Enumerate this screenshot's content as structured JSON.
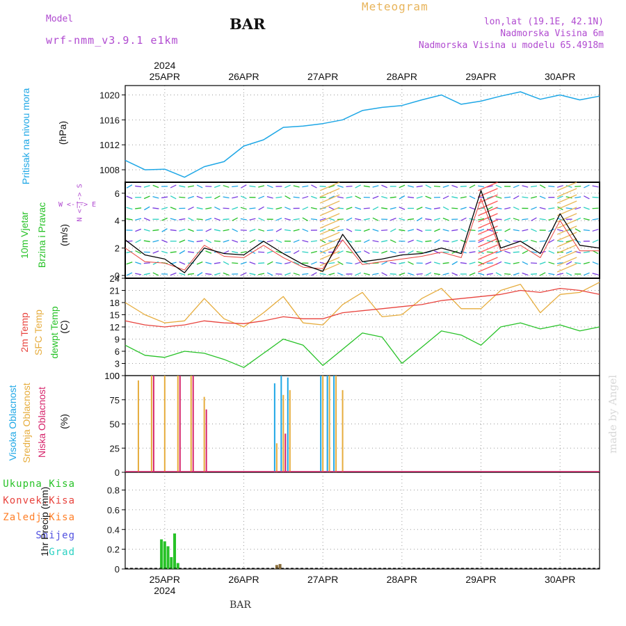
{
  "header": {
    "model_label": "Model",
    "model_value": "wrf-nmm_v3.9.1 e1km",
    "station": "BAR",
    "title": "Meteogram",
    "coords": "lon,lat (19.1E, 42.1N)",
    "elevation": "Nadmorska Visina 6m",
    "model_elevation": "Nadmorska Visina u modelu 65.4918m"
  },
  "footer": {
    "station": "BAR",
    "watermark": "made by Angel"
  },
  "time_axis": {
    "year_top": "2024",
    "year_bottom": "2024",
    "dates": [
      "25APR",
      "26APR",
      "27APR",
      "28APR",
      "29APR",
      "30APR"
    ],
    "start": "2024-04-24T12:00",
    "end": "2024-04-30T12:00"
  },
  "colors": {
    "pressure": "#1ea7e6",
    "temp2m": "#e8433d",
    "sfc_temp": "#e6ac3c",
    "dewpt": "#27c227",
    "high_cloud": "#1ea7e6",
    "mid_cloud": "#e6ac3c",
    "low_cloud": "#d6246b",
    "total_rain": "#27c227",
    "conv_rain": "#e8433d",
    "freezing": "#ff7f27",
    "snow": "#5050e0",
    "hail": "#2ad1c2",
    "wind_speed": "#000000",
    "wind_gust": "#e8433d"
  },
  "labels": {
    "pressure": "Pritisak na nivou mora",
    "pressure_unit": "(hPa)",
    "wind_1": "10m Vjetar",
    "wind_2": "Brzina i Pravac",
    "wind_unit": "(m/s)",
    "compass": "W <-|-> E",
    "compass_n": "N <-|-> S",
    "temp_2m": "2m Temp",
    "temp_sfc": "SFC Temp",
    "temp_dew": "dewpt Temp",
    "temp_unit": "(C)",
    "cloud_high": "Visoka Oblacnost",
    "cloud_mid": "Srednja Oblacnost",
    "cloud_low": "Niska Oblacnost",
    "cloud_unit": "(%)",
    "precip_unit": "1hr Precip (mm)",
    "legend": [
      "Ukupna Kisa",
      "Konvek.Kisa",
      "Zaledj.Kisa",
      "Snijeg",
      "Grad"
    ]
  },
  "chart_data": [
    {
      "type": "line",
      "title": "",
      "ylabel": "Pritisak na nivou mora (hPa)",
      "ylim": [
        1006,
        1021.5
      ],
      "yticks": [
        1008,
        1012,
        1016,
        1020
      ],
      "grid": true,
      "x": [
        "2024-04-24T12:00",
        "2024-04-24T18:00",
        "2024-04-25T00:00",
        "2024-04-25T06:00",
        "2024-04-25T12:00",
        "2024-04-25T18:00",
        "2024-04-26T00:00",
        "2024-04-26T06:00",
        "2024-04-26T12:00",
        "2024-04-26T18:00",
        "2024-04-27T00:00",
        "2024-04-27T06:00",
        "2024-04-27T12:00",
        "2024-04-27T18:00",
        "2024-04-28T00:00",
        "2024-04-28T06:00",
        "2024-04-28T12:00",
        "2024-04-28T18:00",
        "2024-04-29T00:00",
        "2024-04-29T06:00",
        "2024-04-29T12:00",
        "2024-04-29T18:00",
        "2024-04-30T00:00",
        "2024-04-30T06:00",
        "2024-04-30T12:00"
      ],
      "series": [
        {
          "name": "Pritisak na nivou mora",
          "values": [
            1009.5,
            1008.0,
            1008.1,
            1006.8,
            1008.5,
            1009.3,
            1011.8,
            1012.8,
            1014.8,
            1015.0,
            1015.4,
            1016.0,
            1017.5,
            1018.0,
            1018.3,
            1019.2,
            1020.0,
            1018.5,
            1019.0,
            1019.8,
            1020.5,
            1019.3,
            1020.0,
            1019.2,
            1019.8
          ]
        }
      ]
    },
    {
      "type": "line",
      "title": "",
      "ylabel": "10m Vjetar Brzina i Pravac (m/s)",
      "ylim": [
        -0.2,
        6.8
      ],
      "yticks": [
        0,
        2,
        4,
        6
      ],
      "grid": true,
      "x": [
        "2024-04-24T12:00",
        "2024-04-24T18:00",
        "2024-04-25T00:00",
        "2024-04-25T06:00",
        "2024-04-25T12:00",
        "2024-04-25T18:00",
        "2024-04-26T00:00",
        "2024-04-26T06:00",
        "2024-04-26T12:00",
        "2024-04-26T18:00",
        "2024-04-27T00:00",
        "2024-04-27T06:00",
        "2024-04-27T12:00",
        "2024-04-27T18:00",
        "2024-04-28T00:00",
        "2024-04-28T06:00",
        "2024-04-28T12:00",
        "2024-04-28T18:00",
        "2024-04-29T00:00",
        "2024-04-29T06:00",
        "2024-04-29T12:00",
        "2024-04-29T18:00",
        "2024-04-30T00:00",
        "2024-04-30T06:00",
        "2024-04-30T12:00"
      ],
      "series": [
        {
          "name": "speed",
          "values": [
            2.6,
            1.5,
            1.2,
            0.2,
            2.0,
            1.6,
            1.5,
            2.5,
            1.6,
            0.8,
            0.3,
            3.0,
            1.0,
            1.2,
            1.5,
            1.6,
            2.0,
            1.6,
            6.2,
            2.0,
            2.5,
            1.6,
            4.5,
            2.2,
            2.0
          ]
        },
        {
          "name": "gust",
          "values": [
            2.0,
            1.0,
            0.9,
            0.4,
            2.2,
            1.4,
            1.3,
            2.2,
            1.3,
            0.6,
            0.5,
            2.6,
            0.8,
            1.0,
            1.2,
            1.4,
            1.7,
            1.3,
            5.6,
            1.8,
            2.2,
            1.3,
            4.0,
            1.8,
            1.8
          ]
        }
      ]
    },
    {
      "type": "line",
      "title": "",
      "ylabel": "Temp (C)",
      "ylim": [
        0,
        24
      ],
      "yticks": [
        0,
        3,
        6,
        9,
        12,
        15,
        18,
        21,
        24
      ],
      "grid": true,
      "x": [
        "2024-04-24T12:00",
        "2024-04-24T18:00",
        "2024-04-25T00:00",
        "2024-04-25T06:00",
        "2024-04-25T12:00",
        "2024-04-25T18:00",
        "2024-04-26T00:00",
        "2024-04-26T06:00",
        "2024-04-26T12:00",
        "2024-04-26T18:00",
        "2024-04-27T00:00",
        "2024-04-27T06:00",
        "2024-04-27T12:00",
        "2024-04-27T18:00",
        "2024-04-28T00:00",
        "2024-04-28T06:00",
        "2024-04-28T12:00",
        "2024-04-28T18:00",
        "2024-04-29T00:00",
        "2024-04-29T06:00",
        "2024-04-29T12:00",
        "2024-04-29T18:00",
        "2024-04-30T00:00",
        "2024-04-30T06:00",
        "2024-04-30T12:00"
      ],
      "series": [
        {
          "name": "2m Temp",
          "values": [
            13.5,
            12.5,
            12.0,
            12.5,
            13.5,
            13.0,
            12.8,
            13.5,
            14.5,
            14.0,
            14.0,
            15.5,
            16.0,
            16.5,
            17.0,
            17.5,
            18.5,
            19.0,
            19.5,
            20.0,
            21.0,
            20.5,
            21.5,
            21.0,
            20.0
          ]
        },
        {
          "name": "SFC Temp",
          "values": [
            18.0,
            15.0,
            13.0,
            13.5,
            19.0,
            14.0,
            12.0,
            15.5,
            19.5,
            13.0,
            12.5,
            17.5,
            20.5,
            14.5,
            15.0,
            19.0,
            21.5,
            16.5,
            16.5,
            21.0,
            22.5,
            15.5,
            20.0,
            20.5,
            23.0
          ]
        },
        {
          "name": "dewpt Temp",
          "values": [
            7.5,
            5.0,
            4.5,
            6.0,
            5.5,
            4.0,
            2.0,
            5.5,
            9.0,
            7.5,
            2.5,
            6.5,
            10.5,
            9.5,
            3.0,
            7.0,
            11.0,
            10.0,
            7.5,
            12.0,
            13.0,
            11.5,
            12.5,
            11.0,
            12.0
          ]
        }
      ]
    },
    {
      "type": "bar",
      "title": "",
      "ylabel": "Oblacnost (%)",
      "ylim": [
        0,
        100
      ],
      "yticks": [
        0,
        25,
        50,
        75,
        100
      ],
      "grid": true,
      "x": [
        "2024-04-24T16:00",
        "2024-04-24T20:00",
        "2024-04-25T00:00",
        "2024-04-25T04:00",
        "2024-04-25T08:00",
        "2024-04-25T12:00",
        "2024-04-26T10:00",
        "2024-04-26T12:00",
        "2024-04-26T14:00",
        "2024-04-27T00:00",
        "2024-04-27T02:00",
        "2024-04-27T04:00",
        "2024-04-27T06:00"
      ],
      "series": [
        {
          "name": "Visoka Oblacnost",
          "values": [
            0,
            0,
            0,
            0,
            0,
            0,
            92,
            100,
            98,
            100,
            100,
            100,
            0
          ]
        },
        {
          "name": "Srednja Oblacnost",
          "values": [
            95,
            100,
            100,
            100,
            100,
            78,
            30,
            80,
            85,
            100,
            100,
            100,
            85
          ]
        },
        {
          "name": "Niska Oblacnost",
          "values": [
            0,
            100,
            0,
            100,
            100,
            65,
            0,
            40,
            0,
            0,
            0,
            0,
            0
          ]
        }
      ]
    },
    {
      "type": "bar",
      "title": "",
      "ylabel": "1hr Precip (mm)",
      "ylim": [
        0,
        0.98
      ],
      "yticks": [
        0,
        0.2,
        0.4,
        0.6,
        0.8
      ],
      "grid": true,
      "x": [
        "2024-04-24T23:00",
        "2024-04-25T00:00",
        "2024-04-25T01:00",
        "2024-04-25T02:00",
        "2024-04-25T03:00",
        "2024-04-25T04:00",
        "2024-04-26T10:00",
        "2024-04-26T11:00"
      ],
      "series": [
        {
          "name": "Ukupna Kisa",
          "values": [
            0.3,
            0.28,
            0.23,
            0.12,
            0.36,
            0.06,
            0.0,
            0.0
          ]
        },
        {
          "name": "Konvek.Kisa",
          "values": [
            0.0,
            0.0,
            0.0,
            0.0,
            0.0,
            0.0,
            0.04,
            0.05
          ]
        }
      ]
    }
  ]
}
